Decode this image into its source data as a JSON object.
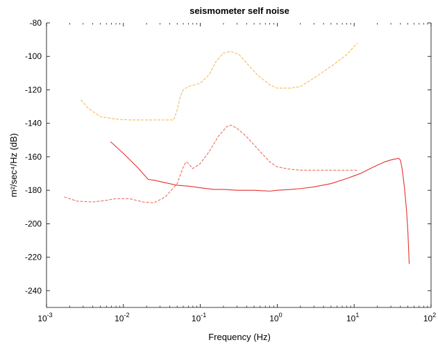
{
  "chart_data": {
    "type": "line",
    "title": "seismometer self noise",
    "xlabel": "Frequency (Hz)",
    "ylabel": "m²/sec⁴/Hz  (dB)",
    "xscale": "log",
    "xlim": [
      0.001,
      100
    ],
    "ylim": [
      -250,
      -80
    ],
    "xticks": [
      0.001,
      0.01,
      0.1,
      1,
      10,
      100
    ],
    "xtick_labels": [
      {
        "base": "10",
        "exp": "-3"
      },
      {
        "base": "10",
        "exp": "-2"
      },
      {
        "base": "10",
        "exp": "-1"
      },
      {
        "base": "10",
        "exp": "0"
      },
      {
        "base": "10",
        "exp": "1"
      },
      {
        "base": "10",
        "exp": "2"
      }
    ],
    "yticks": [
      -240,
      -220,
      -200,
      -180,
      -160,
      -140,
      -120,
      -100,
      -80
    ],
    "ytick_labels": [
      "-240",
      "-220",
      "-200",
      "-180",
      "-160",
      "-140",
      "-120",
      "-100",
      "-80"
    ],
    "grid": false,
    "legend": "none",
    "series": [
      {
        "style": "dashed",
        "color": "#f5b342",
        "x": [
          0.0028,
          0.0035,
          0.005,
          0.008,
          0.012,
          0.02,
          0.03,
          0.045,
          0.05,
          0.055,
          0.06,
          0.07,
          0.1,
          0.13,
          0.16,
          0.2,
          0.25,
          0.32,
          0.4,
          0.55,
          0.8,
          1.0,
          1.5,
          2.0,
          3.0,
          5.0,
          8.0,
          11.0
        ],
        "y": [
          -126,
          -131,
          -136,
          -137.5,
          -138,
          -138,
          -138,
          -138,
          -132,
          -124,
          -120,
          -118,
          -116,
          -111,
          -103,
          -98,
          -97,
          -99,
          -104,
          -111,
          -117,
          -119,
          -119,
          -118,
          -113,
          -106,
          -99,
          -92
        ]
      },
      {
        "style": "dashed",
        "color": "#e8604a",
        "x": [
          0.0017,
          0.0025,
          0.004,
          0.006,
          0.008,
          0.012,
          0.018,
          0.025,
          0.035,
          0.05,
          0.06,
          0.065,
          0.07,
          0.08,
          0.1,
          0.13,
          0.17,
          0.22,
          0.25,
          0.3,
          0.4,
          0.55,
          0.8,
          1.0,
          1.5,
          2.0,
          3.0,
          5.0,
          8.0,
          11.0
        ],
        "y": [
          -184,
          -186.5,
          -187,
          -186,
          -185,
          -185,
          -187,
          -187.5,
          -184,
          -176,
          -166,
          -163,
          -164,
          -167,
          -164,
          -157,
          -148,
          -142,
          -141,
          -143,
          -148,
          -155,
          -163,
          -166,
          -167.5,
          -168,
          -168,
          -168,
          -168,
          -168
        ]
      },
      {
        "style": "solid",
        "color": "#e53030",
        "x": [
          0.0068,
          0.01,
          0.015,
          0.021,
          0.025,
          0.035,
          0.05,
          0.07,
          0.1,
          0.15,
          0.2,
          0.3,
          0.5,
          0.8,
          1.0,
          1.5,
          2.0,
          3.0,
          5.0,
          8.0,
          12.0,
          18.0,
          25.0,
          32.0,
          38.0,
          40.0,
          42.0,
          45.0,
          48.0,
          50.0,
          52.0
        ],
        "y": [
          -151,
          -158,
          -166,
          -173.5,
          -174,
          -175.5,
          -177,
          -177.5,
          -178.5,
          -179.5,
          -179.5,
          -180,
          -180,
          -180.5,
          -180,
          -179.5,
          -179,
          -178,
          -176,
          -173,
          -170,
          -166,
          -163,
          -161.5,
          -161,
          -162,
          -167,
          -178,
          -192,
          -205,
          -224
        ]
      }
    ]
  }
}
